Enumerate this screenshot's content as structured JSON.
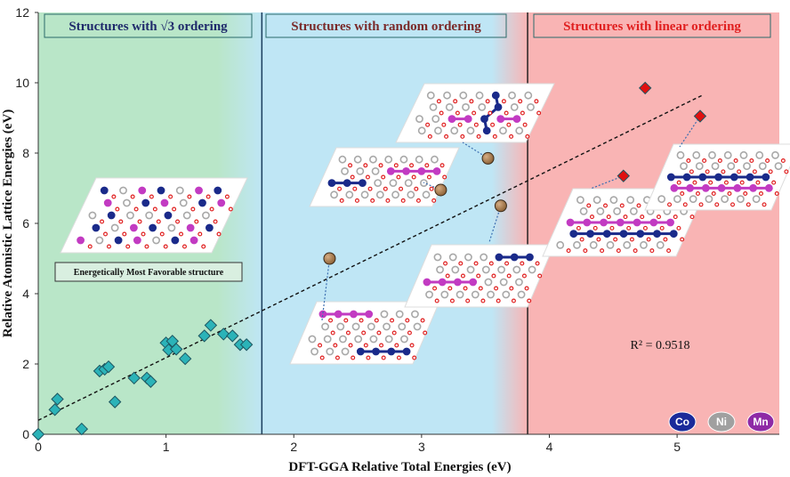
{
  "chart_data": {
    "type": "scatter",
    "xlabel": "DFT-GGA Relative Total Energies  (eV)",
    "ylabel": "Relative Atomistic Lattice Energies (eV)",
    "xlim": [
      0,
      5.8
    ],
    "ylim": [
      0,
      12
    ],
    "x_ticks": [
      "0",
      "1",
      "2",
      "3",
      "4",
      "5"
    ],
    "y_ticks": [
      "0",
      "2",
      "4",
      "6",
      "8",
      "10",
      "12"
    ],
    "grid": false,
    "regions": [
      {
        "label": "Structures with √3 ordering",
        "x_start": 0,
        "x_end": 1.75,
        "color": "#b9e6c8",
        "text_color": "#1f2a6b"
      },
      {
        "label": "Structures with random ordering",
        "x_start": 1.75,
        "x_end": 3.83,
        "color": "#bfe6f5",
        "text_color": "#7a2a2a"
      },
      {
        "label": "Structures with linear ordering",
        "x_start": 3.83,
        "x_end": 5.8,
        "color": "#f9b4b4",
        "text_color": "#e02020"
      }
    ],
    "series": [
      {
        "marker": "diamond",
        "color": "#2bb3b8",
        "x": [
          0,
          0.13,
          0.15,
          0.34,
          0.48,
          0.52,
          0.55,
          0.6,
          0.75,
          0.85,
          0.88,
          1.0,
          1.02,
          1.05,
          1.08,
          1.15,
          1.3,
          1.35,
          1.45,
          1.52,
          1.58,
          1.63
        ],
        "y": [
          0,
          0.7,
          1.0,
          0.15,
          1.8,
          1.85,
          1.92,
          0.92,
          1.6,
          1.6,
          1.5,
          2.6,
          2.4,
          2.65,
          2.42,
          2.15,
          2.8,
          3.1,
          2.85,
          2.8,
          2.55,
          2.55
        ]
      },
      {
        "marker": "circle",
        "color": "#a67c4f",
        "x": [
          2.28,
          3.15,
          3.52,
          3.62
        ],
        "y": [
          5.0,
          6.95,
          7.85,
          6.5
        ]
      },
      {
        "marker": "diamond",
        "color": "#e01010",
        "x": [
          4.58,
          4.75,
          5.18
        ],
        "y": [
          7.35,
          9.85,
          9.05
        ]
      }
    ],
    "trendline": {
      "x": [
        0,
        5.2
      ],
      "y": [
        0.4,
        9.65
      ],
      "style": "dashed"
    },
    "annotations": {
      "r_squared": "R² = 0.9518",
      "note": "Energetically Most Favorable structure"
    },
    "legend": {
      "items": [
        {
          "label": "Co",
          "color": "#1a2a9a"
        },
        {
          "label": "Ni",
          "color": "#a0a0a0"
        },
        {
          "label": "Mn",
          "color": "#8e2aa6"
        }
      ]
    }
  }
}
